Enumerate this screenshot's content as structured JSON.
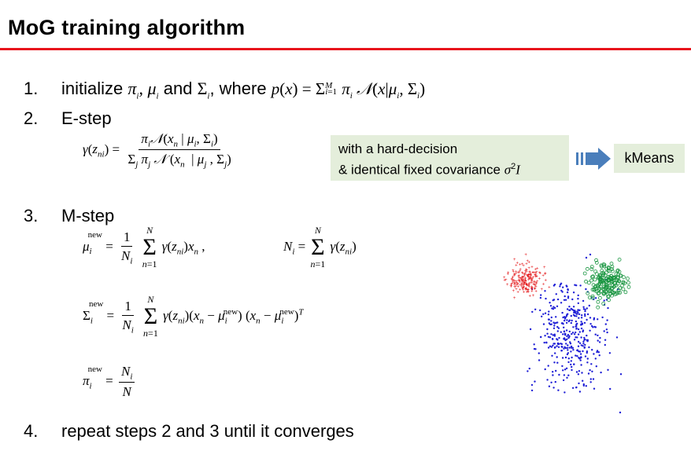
{
  "title": "MoG training algorithm",
  "steps": {
    "s1": {
      "num": "1.",
      "pre": "initialize",
      "and_word": "and",
      "where_word": ", where"
    },
    "s2": {
      "num": "2.",
      "label": "E-step"
    },
    "s3": {
      "num": "3.",
      "label": "M-step"
    },
    "s4": {
      "num": "4.",
      "label": "repeat steps 2 and 3 until it converges"
    }
  },
  "hint": {
    "line1": "with a hard-decision",
    "line2_prefix": "& identical fixed covariance",
    "result": "kMeans"
  },
  "colors": {
    "title_rule": "#e8141c",
    "box_bg": "#e4eedb",
    "arrow": "#4a7ebb",
    "cluster_red": "#e41a1c",
    "cluster_green": "#1a9641",
    "cluster_blue": "#1f1fd6"
  }
}
